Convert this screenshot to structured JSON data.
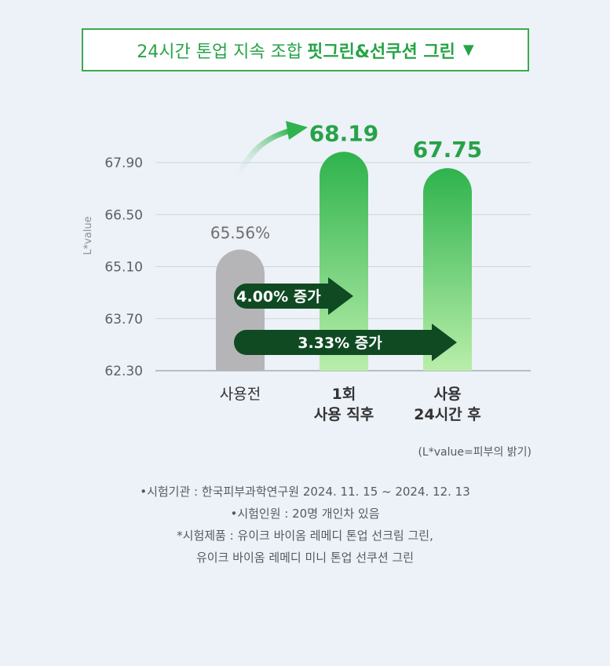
{
  "header": {
    "title_regular": "24시간 톤업 지속 조합",
    "title_bold": "핏그린&선쿠션 그린",
    "arrow": "▼"
  },
  "chart_data": {
    "type": "bar",
    "ylabel": "L*value",
    "y_ticks": [
      "67.90",
      "66.50",
      "65.10",
      "63.70",
      "62.30"
    ],
    "ylim": [
      62.3,
      68.6
    ],
    "categories": [
      [
        "사용전"
      ],
      [
        "1회",
        "사용 직후"
      ],
      [
        "사용",
        "24시간 후"
      ]
    ],
    "values": [
      65.56,
      68.19,
      67.75
    ],
    "value_labels": [
      "65.56%",
      "68.19",
      "67.75"
    ],
    "increases": [
      "4.00% 증가",
      "3.33% 증가"
    ],
    "colors": {
      "before": "#b5b5b7",
      "green_top": "#2eb34d",
      "green_bottom": "#b9eeaa",
      "label_gray": "#707070",
      "label_green": "#27a347",
      "arrow_dark": "#0f4a23"
    }
  },
  "source_note": "(L*value=피부의 밝기)",
  "footnotes": [
    "•시험기관 : 한국피부과학연구원 2024. 11. 15 ~ 2024. 12. 13",
    "•시험인원 : 20명 개인차 있음",
    "*시험제품 : 유이크 바이옴 레메디 톤업 선크림 그린,",
    "유이크 바이옴 레메디 미니 톤업 선쿠션 그린"
  ]
}
